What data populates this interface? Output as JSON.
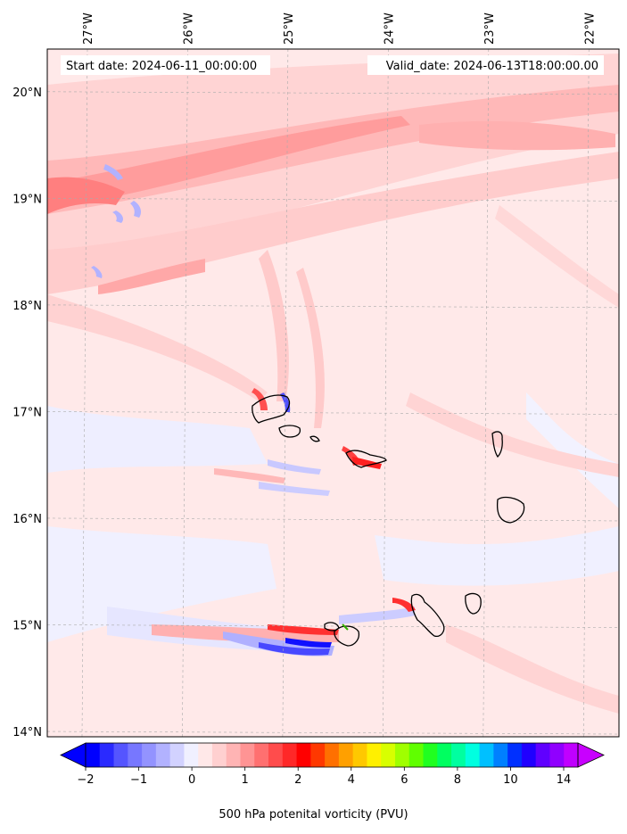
{
  "header": {
    "start_date": "Start date: 2024-06-11_00:00:00",
    "valid_date": "Valid_date: 2024-06-13T18:00:00.00"
  },
  "map": {
    "lon_range": [
      -27.4,
      -21.7
    ],
    "lat_range": [
      13.95,
      20.4
    ],
    "lon_ticks": [
      {
        "value": -27,
        "label": "27°W"
      },
      {
        "value": -26,
        "label": "26°W"
      },
      {
        "value": -25,
        "label": "25°W"
      },
      {
        "value": -24,
        "label": "24°W"
      },
      {
        "value": -23,
        "label": "23°W"
      },
      {
        "value": -22,
        "label": "22°W"
      }
    ],
    "lat_ticks": [
      {
        "value": 20,
        "label": "20°N"
      },
      {
        "value": 19,
        "label": "19°N"
      },
      {
        "value": 18,
        "label": "18°N"
      },
      {
        "value": 17,
        "label": "17°N"
      },
      {
        "value": 16,
        "label": "16°N"
      },
      {
        "value": 15,
        "label": "15°N"
      },
      {
        "value": 14,
        "label": "14°N"
      }
    ],
    "gridlines": true
  },
  "colorbar": {
    "label": "500 hPa potenital vorticity (PVU)",
    "tick_labels": [
      "−2",
      "−1",
      "0",
      "1",
      "2",
      "4",
      "6",
      "8",
      "10",
      "14"
    ],
    "colors": [
      "#0000ff",
      "#2a2aff",
      "#5555ff",
      "#7777ff",
      "#9393ff",
      "#b2b2ff",
      "#d2d2ff",
      "#f0f0ff",
      "#ffe8e8",
      "#ffd0d0",
      "#ffb4b4",
      "#ff9494",
      "#ff7070",
      "#ff4c4c",
      "#ff2828",
      "#ff0000",
      "#ff3800",
      "#ff7000",
      "#ffa000",
      "#ffc800",
      "#fff000",
      "#d8ff00",
      "#a0ff00",
      "#60ff00",
      "#20ff20",
      "#00ff60",
      "#00ffa0",
      "#00ffe0",
      "#00c0ff",
      "#0080ff",
      "#0030ff",
      "#2000ff",
      "#6000ff",
      "#9000ff",
      "#c000ff"
    ],
    "extend_low_color": "#0000ff",
    "extend_high_color": "#c800ff"
  }
}
